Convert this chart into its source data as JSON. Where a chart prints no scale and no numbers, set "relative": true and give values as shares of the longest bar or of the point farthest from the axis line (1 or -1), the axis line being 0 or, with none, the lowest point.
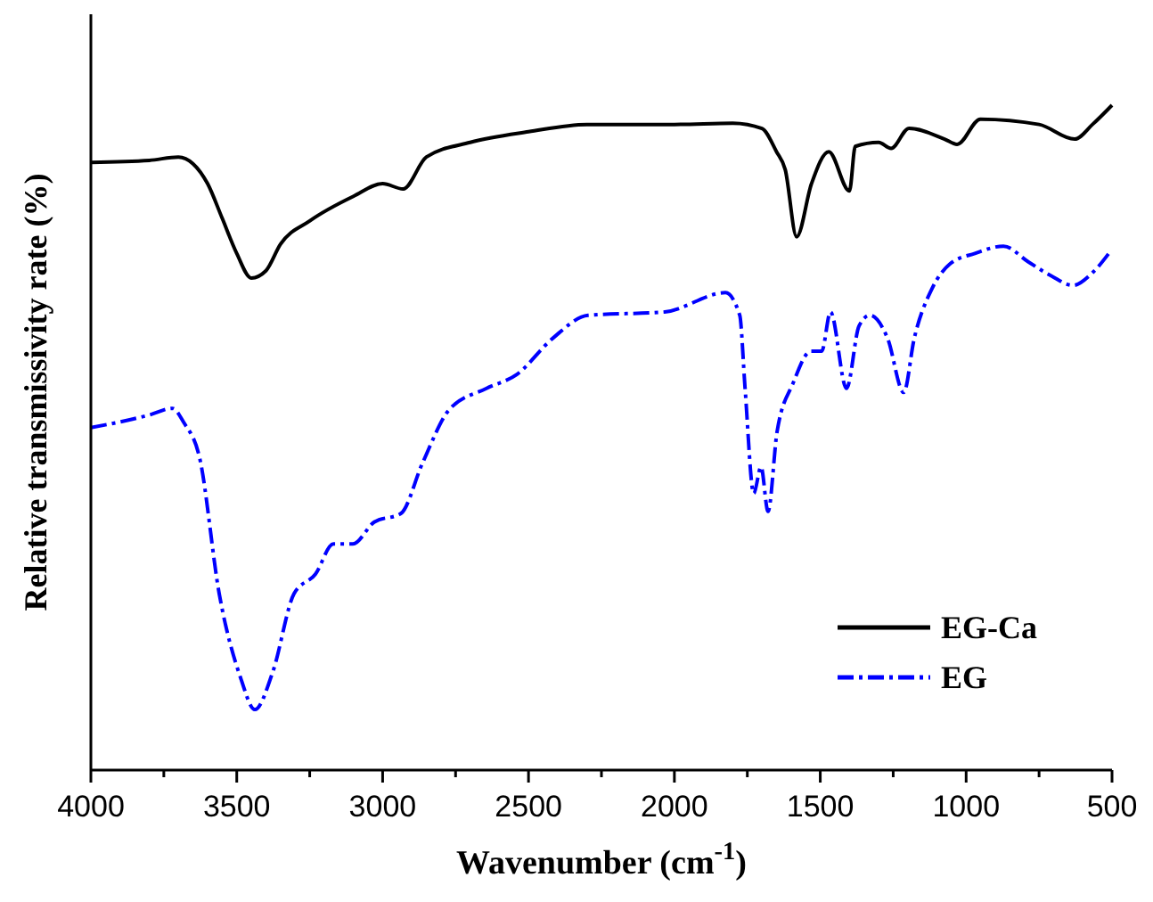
{
  "chart_data": {
    "type": "line",
    "xlabel": "Wavenumber (cm$^{-1}$)",
    "ylabel": "Relative transmissivity rate (%)",
    "relative": true,
    "xlim": [
      4000,
      500
    ],
    "xticks": [
      4000,
      {
        "value": 3750,
        "label": null
      },
      3500,
      {
        "value": 3250,
        "label": null
      },
      3000,
      {
        "value": 2750,
        "label": null
      },
      2500,
      {
        "value": 2250,
        "label": null
      },
      2000,
      {
        "value": 1750,
        "label": null
      },
      1500,
      {
        "value": 1250,
        "label": null
      },
      1000,
      {
        "value": 750,
        "label": null
      },
      500
    ],
    "legend": "bottom right",
    "grid": false,
    "marker": "none",
    "series": [
      {
        "name": "EG-Ca",
        "color": "#000000",
        "line_style": "solid",
        "x": [
          4000,
          3800,
          3700,
          3650,
          3600,
          3550,
          3500,
          3450,
          3400,
          3350,
          3250,
          3100,
          3000,
          2930,
          2850,
          2700,
          2500,
          2300,
          2000,
          1800,
          1700,
          1650,
          1620,
          1581,
          1530,
          1471,
          1400,
          1380,
          1300,
          1257,
          1196,
          1074,
          1031,
          951,
          750,
          628,
          567,
          500
        ],
        "values": [
          0.914,
          0.917,
          0.922,
          0.912,
          0.882,
          0.83,
          0.777,
          0.74,
          0.751,
          0.791,
          0.826,
          0.863,
          0.882,
          0.874,
          0.922,
          0.944,
          0.96,
          0.971,
          0.971,
          0.973,
          0.965,
          0.93,
          0.903,
          0.802,
          0.882,
          0.93,
          0.871,
          0.938,
          0.944,
          0.935,
          0.965,
          0.949,
          0.941,
          0.979,
          0.971,
          0.949,
          0.971,
          1
        ]
      },
      {
        "name": "EG",
        "color": "#0000ff",
        "line_style": "dashed",
        "x": [
          4000,
          3800,
          3720,
          3682,
          3627,
          3560,
          3487,
          3438,
          3377,
          3304,
          3230,
          3169,
          3102,
          3029,
          2937,
          2864,
          2772,
          2644,
          2540,
          2418,
          2296,
          2033,
          1825,
          1776,
          1758,
          1728,
          1703,
          1679,
          1648,
          1593,
          1532,
          1495,
          1465,
          1410,
          1367,
          1330,
          1269,
          1214,
          1178,
          1117,
          1056,
          970,
          872,
          786,
          707,
          634,
          567,
          506
        ],
        "values": [
          0.515,
          0.534,
          0.544,
          0.523,
          0.469,
          0.265,
          0.139,
          0.091,
          0.147,
          0.265,
          0.295,
          0.34,
          0.34,
          0.373,
          0.386,
          0.461,
          0.542,
          0.574,
          0.595,
          0.649,
          0.684,
          0.689,
          0.718,
          0.684,
          0.576,
          0.416,
          0.456,
          0.389,
          0.509,
          0.582,
          0.63,
          0.63,
          0.689,
          0.574,
          0.668,
          0.684,
          0.649,
          0.568,
          0.649,
          0.724,
          0.761,
          0.777,
          0.788,
          0.764,
          0.743,
          0.729,
          0.748,
          0.78
        ]
      }
    ]
  }
}
